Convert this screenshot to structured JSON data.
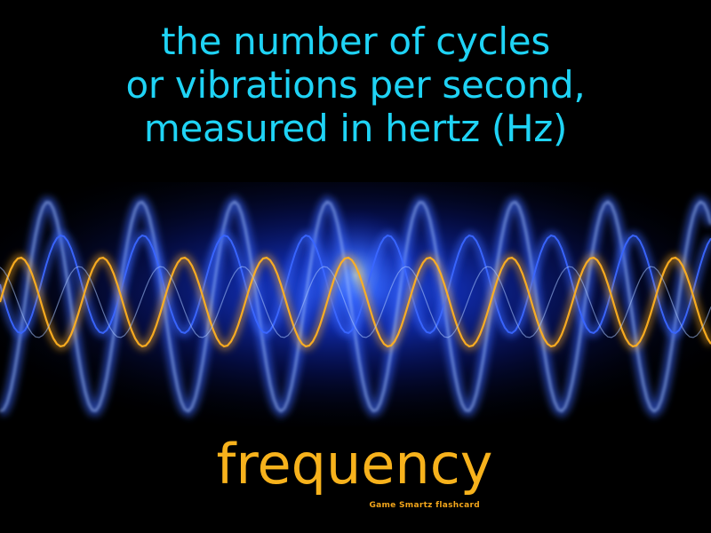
{
  "card": {
    "definition_lines": [
      "the number of cycles",
      "or vibrations per second,",
      "measured in hertz (Hz)"
    ],
    "term": "frequency",
    "credit": "Game Smartz flashcard"
  },
  "colors": {
    "background": "#000000",
    "definition_text": "#1fd3f5",
    "term_text": "#f7b21c",
    "wave_blue": "#3a66ff",
    "wave_light": "#a8c4ff",
    "wave_orange": "#ffb020",
    "glow": "#1c46ff"
  },
  "illustration": {
    "icon": "sine-waves-glow-icon"
  }
}
